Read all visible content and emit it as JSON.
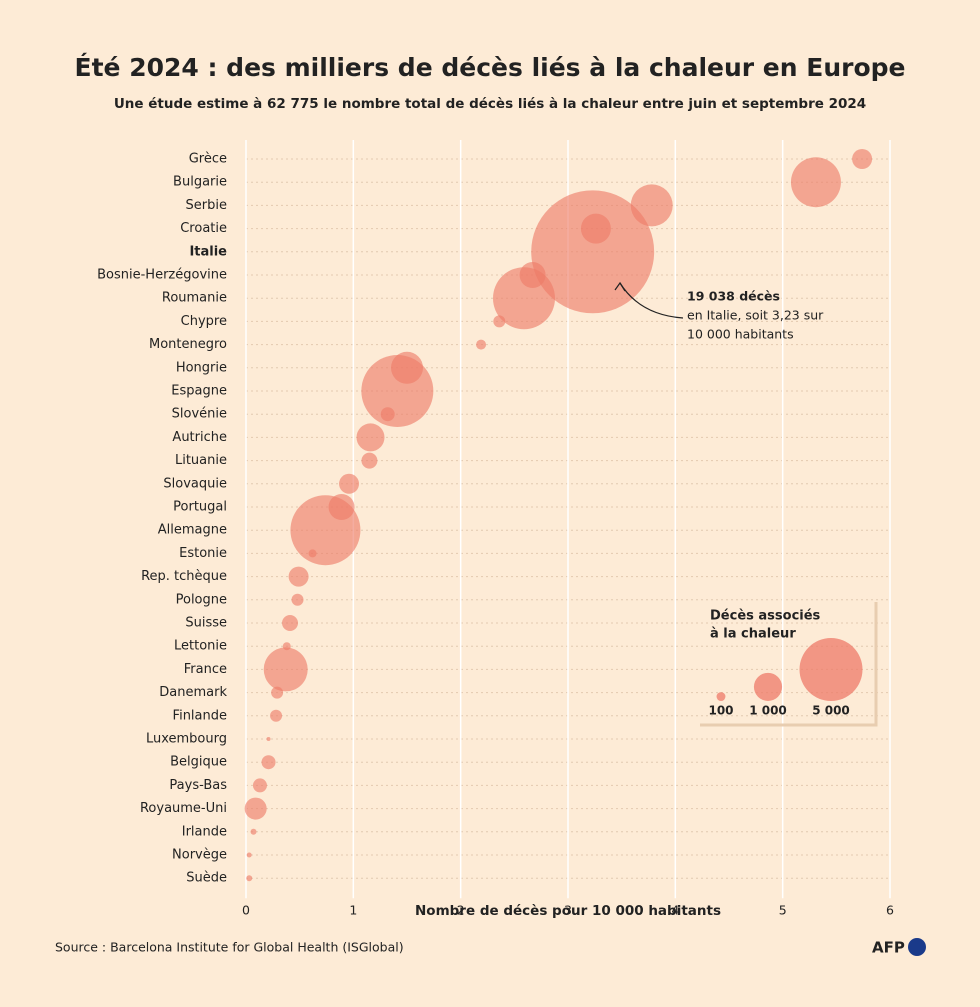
{
  "chart_data": {
    "type": "bubble",
    "title": "Été 2024 : des milliers de décès liés à la chaleur en Europe",
    "subtitle": "Une étude estime à 62 775 le nombre total de décès liés à la chaleur entre juin et septembre 2024",
    "x_label": "Nombre de décès pour 10 000 habitants",
    "categories": [
      "Grèce",
      "Bulgarie",
      "Serbie",
      "Croatie",
      "Italie",
      "Bosnie-Herzégovine",
      "Roumanie",
      "Chypre",
      "Montenegro",
      "Hongrie",
      "Espagne",
      "Slovénie",
      "Autriche",
      "Lituanie",
      "Slovaquie",
      "Portugal",
      "Allemagne",
      "Estonie",
      "Rep. tchèque",
      "Pologne",
      "Suisse",
      "Lettonie",
      "France",
      "Danemark",
      "Finlande",
      "Luxembourg",
      "Belgique",
      "Pays-Bas",
      "Royaume-Uni",
      "Irlande",
      "Norvège",
      "Suède"
    ],
    "values": [
      5.74,
      5.31,
      3.78,
      3.26,
      3.23,
      2.67,
      2.59,
      2.36,
      2.19,
      1.5,
      1.41,
      1.32,
      1.16,
      1.15,
      0.96,
      0.89,
      0.74,
      0.62,
      0.49,
      0.48,
      0.41,
      0.38,
      0.37,
      0.29,
      0.28,
      0.21,
      0.21,
      0.13,
      0.09,
      0.07,
      0.03,
      0.03
    ],
    "sizes": [
      504,
      3150,
      2222,
      1134,
      19038,
      852,
      4843,
      181,
      126,
      1290,
      6530,
      247,
      988,
      322,
      504,
      852,
      6172,
      81,
      504,
      181,
      322,
      81,
      2439,
      181,
      181,
      20,
      247,
      247,
      610,
      45,
      31,
      45
    ],
    "highlight": 4,
    "color": "#ee7a68",
    "xlim": [
      0,
      6
    ],
    "xticks": [
      0,
      1,
      2,
      3,
      4,
      5,
      6
    ],
    "annotation": {
      "lines": [
        "19 038 décès",
        "en Italie, soit 3,23 sur",
        "10 000 habitants"
      ]
    },
    "legend": {
      "title_lines": [
        "Décès associés",
        "à la chaleur"
      ],
      "sizes": [
        {
          "value": 100,
          "label": "100"
        },
        {
          "value": 1000,
          "label": "1 000"
        },
        {
          "value": 5000,
          "label": "5 000"
        }
      ]
    },
    "source": "Source : Barcelona Institute for Global Health (ISGlobal)",
    "logo": "AFP"
  }
}
